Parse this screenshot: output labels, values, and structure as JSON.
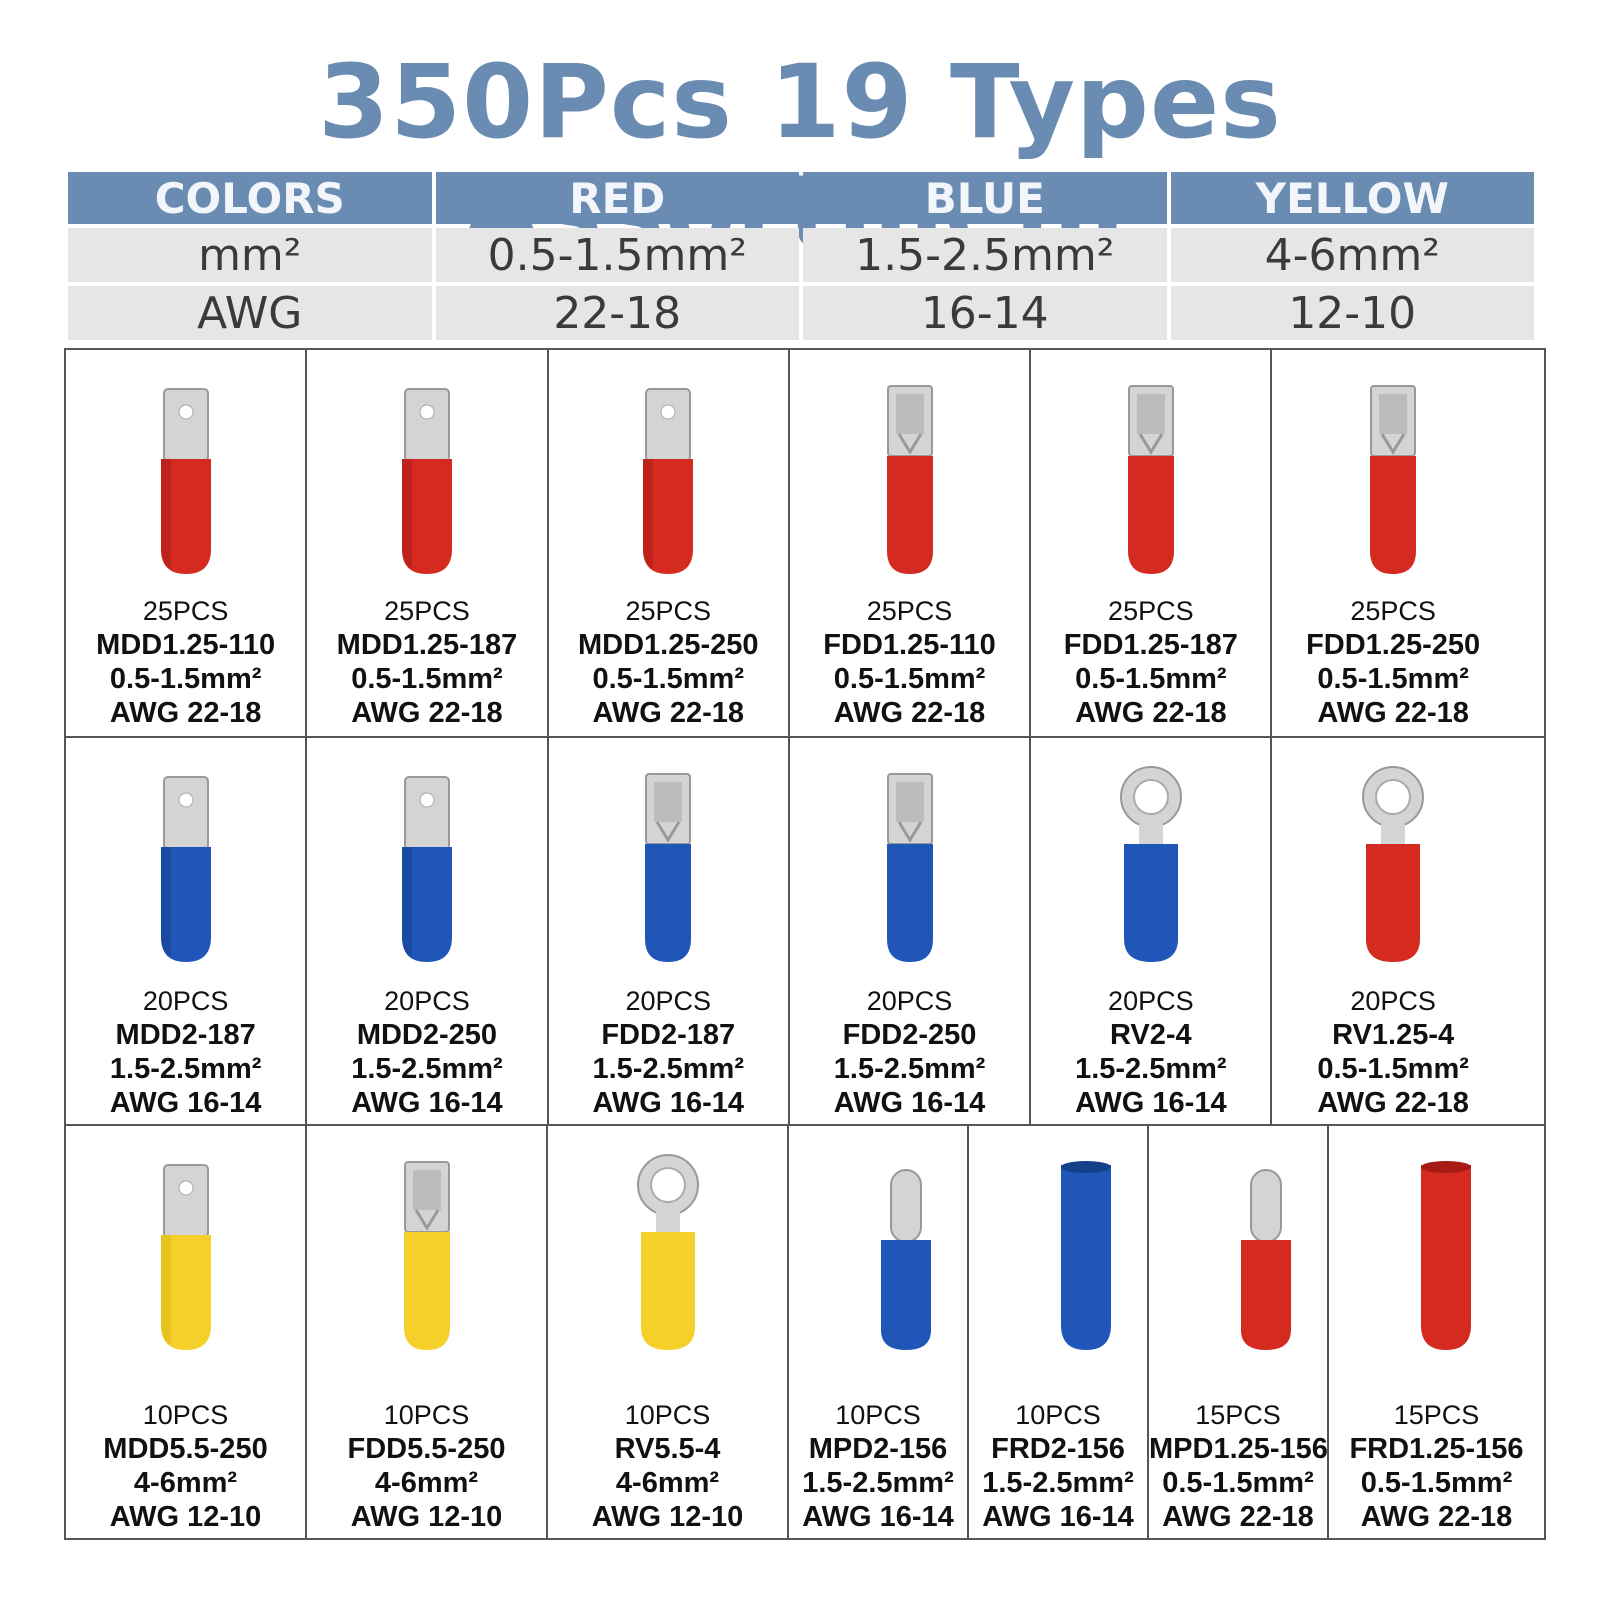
{
  "title": "350Pcs 19 Types Assortment",
  "spec_table": {
    "header": [
      "COLORS",
      "RED",
      "BLUE",
      "YELLOW"
    ],
    "rows": [
      [
        "mm²",
        "0.5-1.5mm²",
        "1.5-2.5mm²",
        "4-6mm²"
      ],
      [
        "AWG",
        "22-18",
        "16-14",
        "12-10"
      ]
    ]
  },
  "colors": {
    "header": "#6b8cb2",
    "red": "#d42a20",
    "blue": "#1f56b8",
    "yellow": "#f5d02a",
    "metal": "#d4d4d4"
  },
  "products": [
    {
      "qty": "25PCS",
      "model": "MDD1.25-110",
      "size": "0.5-1.5mm²",
      "awg": "AWG 22-18",
      "type": "male-spade",
      "color": "red"
    },
    {
      "qty": "25PCS",
      "model": "MDD1.25-187",
      "size": "0.5-1.5mm²",
      "awg": "AWG 22-18",
      "type": "male-spade",
      "color": "red"
    },
    {
      "qty": "25PCS",
      "model": "MDD1.25-250",
      "size": "0.5-1.5mm²",
      "awg": "AWG 22-18",
      "type": "male-spade",
      "color": "red"
    },
    {
      "qty": "25PCS",
      "model": "FDD1.25-110",
      "size": "0.5-1.5mm²",
      "awg": "AWG 22-18",
      "type": "female-spade",
      "color": "red"
    },
    {
      "qty": "25PCS",
      "model": "FDD1.25-187",
      "size": "0.5-1.5mm²",
      "awg": "AWG 22-18",
      "type": "female-spade",
      "color": "red"
    },
    {
      "qty": "25PCS",
      "model": "FDD1.25-250",
      "size": "0.5-1.5mm²",
      "awg": "AWG 22-18",
      "type": "female-spade",
      "color": "red"
    },
    {
      "qty": "20PCS",
      "model": "MDD2-187",
      "size": "1.5-2.5mm²",
      "awg": "AWG 16-14",
      "type": "male-spade",
      "color": "blue"
    },
    {
      "qty": "20PCS",
      "model": "MDD2-250",
      "size": "1.5-2.5mm²",
      "awg": "AWG 16-14",
      "type": "male-spade",
      "color": "blue"
    },
    {
      "qty": "20PCS",
      "model": "FDD2-187",
      "size": "1.5-2.5mm²",
      "awg": "AWG 16-14",
      "type": "female-spade",
      "color": "blue"
    },
    {
      "qty": "20PCS",
      "model": "FDD2-250",
      "size": "1.5-2.5mm²",
      "awg": "AWG 16-14",
      "type": "female-spade",
      "color": "blue"
    },
    {
      "qty": "20PCS",
      "model": "RV2-4",
      "size": "1.5-2.5mm²",
      "awg": "AWG 16-14",
      "type": "ring",
      "color": "blue"
    },
    {
      "qty": "20PCS",
      "model": "RV1.25-4",
      "size": "0.5-1.5mm²",
      "awg": "AWG 22-18",
      "type": "ring",
      "color": "red"
    },
    {
      "qty": "10PCS",
      "model": "MDD5.5-250",
      "size": "4-6mm²",
      "awg": "AWG 12-10",
      "type": "male-spade",
      "color": "yellow"
    },
    {
      "qty": "10PCS",
      "model": "FDD5.5-250",
      "size": "4-6mm²",
      "awg": "AWG 12-10",
      "type": "female-spade",
      "color": "yellow"
    },
    {
      "qty": "10PCS",
      "model": "RV5.5-4",
      "size": "4-6mm²",
      "awg": "AWG 12-10",
      "type": "ring",
      "color": "yellow"
    },
    {
      "qty": "10PCS",
      "model": "MPD2-156",
      "size": "1.5-2.5mm²",
      "awg": "AWG 16-14",
      "type": "bullet-male",
      "color": "blue"
    },
    {
      "qty": "10PCS",
      "model": "FRD2-156",
      "size": "1.5-2.5mm²",
      "awg": "AWG 16-14",
      "type": "bullet-female",
      "color": "blue"
    },
    {
      "qty": "15PCS",
      "model": "MPD1.25-156",
      "size": "0.5-1.5mm²",
      "awg": "AWG 22-18",
      "type": "bullet-male",
      "color": "red"
    },
    {
      "qty": "15PCS",
      "model": "FRD1.25-156",
      "size": "0.5-1.5mm²",
      "awg": "AWG 22-18",
      "type": "bullet-female",
      "color": "red"
    }
  ]
}
